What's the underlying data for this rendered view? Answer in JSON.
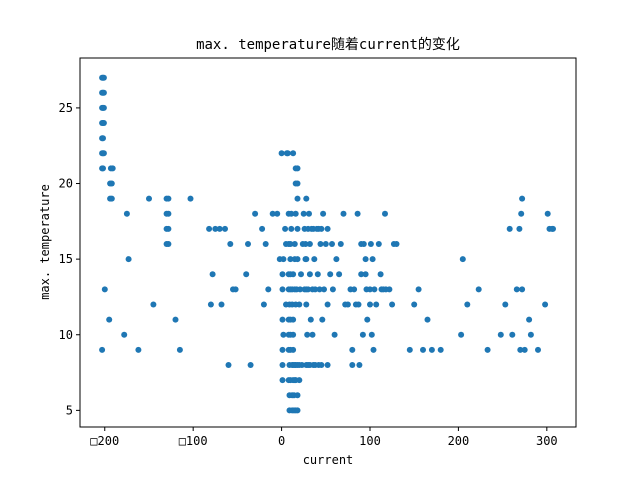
{
  "chart_data": {
    "type": "scatter",
    "title": "max. temperature随着current的变化",
    "xlabel": "current",
    "ylabel": "max. temperature",
    "xlim": [
      -228,
      333
    ],
    "ylim": [
      3.9,
      28.3
    ],
    "x_ticks": [
      -200,
      -100,
      0,
      100,
      200,
      300
    ],
    "x_tick_labels": [
      "□200",
      "□100",
      "0",
      "100",
      "200",
      "300"
    ],
    "y_ticks": [
      5,
      10,
      15,
      20,
      25
    ],
    "y_tick_labels": [
      "5",
      "10",
      "15",
      "20",
      "25"
    ],
    "grid": false,
    "legend": "none",
    "marker_color": "#1f77b4",
    "series": [
      {
        "points": [
          [
            -203,
            27
          ],
          [
            -202,
            27
          ],
          [
            -201,
            27
          ],
          [
            -203,
            26
          ],
          [
            -202,
            26
          ],
          [
            -201,
            26
          ],
          [
            -203,
            25
          ],
          [
            -202,
            25
          ],
          [
            -201,
            25
          ],
          [
            -203,
            24
          ],
          [
            -202,
            24
          ],
          [
            -201,
            24
          ],
          [
            -203,
            23
          ],
          [
            -202,
            23
          ],
          [
            -203,
            22
          ],
          [
            -202,
            22
          ],
          [
            -201,
            22
          ],
          [
            -203,
            21
          ],
          [
            -202,
            21
          ],
          [
            -193,
            21
          ],
          [
            -191,
            21
          ],
          [
            -194,
            20
          ],
          [
            -192,
            20
          ],
          [
            -194,
            19
          ],
          [
            -192,
            19
          ],
          [
            -203,
            9
          ],
          [
            -200,
            13
          ],
          [
            -195,
            11
          ],
          [
            -178,
            10
          ],
          [
            -175,
            18
          ],
          [
            -173,
            15
          ],
          [
            -162,
            9
          ],
          [
            -150,
            19
          ],
          [
            -145,
            12
          ],
          [
            -130,
            19
          ],
          [
            -128,
            19
          ],
          [
            -130,
            18
          ],
          [
            -128,
            18
          ],
          [
            -130,
            17
          ],
          [
            -128,
            17
          ],
          [
            -130,
            16
          ],
          [
            -128,
            16
          ],
          [
            -120,
            11
          ],
          [
            -115,
            9
          ],
          [
            -103,
            19
          ],
          [
            -82,
            17
          ],
          [
            -80,
            12
          ],
          [
            -78,
            14
          ],
          [
            -75,
            17
          ],
          [
            -70,
            17
          ],
          [
            -68,
            12
          ],
          [
            -64,
            17
          ],
          [
            -60,
            8
          ],
          [
            -58,
            16
          ],
          [
            -55,
            13
          ],
          [
            -52,
            13
          ],
          [
            -40,
            14
          ],
          [
            -38,
            16
          ],
          [
            -35,
            8
          ],
          [
            -30,
            18
          ],
          [
            -22,
            17
          ],
          [
            -20,
            12
          ],
          [
            -18,
            16
          ],
          [
            -15,
            13
          ],
          [
            -10,
            18
          ],
          [
            -5,
            18
          ],
          [
            -2,
            15
          ],
          [
            0,
            22
          ],
          [
            1,
            9
          ],
          [
            1,
            7
          ],
          [
            1,
            11
          ],
          [
            1,
            8
          ],
          [
            1,
            13
          ],
          [
            1,
            14
          ],
          [
            2,
            10
          ],
          [
            2,
            15
          ],
          [
            4,
            17
          ],
          [
            5,
            12
          ],
          [
            5,
            16
          ],
          [
            6,
            22
          ],
          [
            7,
            22
          ],
          [
            8,
            7
          ],
          [
            8,
            9
          ],
          [
            8,
            10
          ],
          [
            8,
            11
          ],
          [
            8,
            13
          ],
          [
            8,
            14
          ],
          [
            8,
            16
          ],
          [
            8,
            18
          ],
          [
            9,
            5
          ],
          [
            9,
            6
          ],
          [
            9,
            8
          ],
          [
            9,
            12
          ],
          [
            10,
            7
          ],
          [
            10,
            9
          ],
          [
            10,
            10
          ],
          [
            10,
            11
          ],
          [
            10,
            13
          ],
          [
            10,
            14
          ],
          [
            10,
            15
          ],
          [
            10,
            16
          ],
          [
            11,
            17
          ],
          [
            11,
            18
          ],
          [
            12,
            5
          ],
          [
            12,
            6
          ],
          [
            12,
            8
          ],
          [
            12,
            12
          ],
          [
            12,
            13
          ],
          [
            13,
            7
          ],
          [
            13,
            8
          ],
          [
            13,
            9
          ],
          [
            13,
            10
          ],
          [
            13,
            11
          ],
          [
            13,
            14
          ],
          [
            13,
            22
          ],
          [
            14,
            5
          ],
          [
            14,
            6
          ],
          [
            15,
            7
          ],
          [
            15,
            8
          ],
          [
            15,
            13
          ],
          [
            15,
            15
          ],
          [
            15,
            16
          ],
          [
            16,
            5
          ],
          [
            16,
            7
          ],
          [
            16,
            8
          ],
          [
            16,
            12
          ],
          [
            16,
            18
          ],
          [
            16,
            20
          ],
          [
            16,
            21
          ],
          [
            17,
            13
          ],
          [
            18,
            5
          ],
          [
            18,
            6
          ],
          [
            18,
            8
          ],
          [
            18,
            15
          ],
          [
            18,
            17
          ],
          [
            18,
            19
          ],
          [
            18,
            20
          ],
          [
            18,
            21
          ],
          [
            20,
            7
          ],
          [
            20,
            8
          ],
          [
            20,
            12
          ],
          [
            21,
            13
          ],
          [
            22,
            14
          ],
          [
            23,
            8
          ],
          [
            24,
            16
          ],
          [
            25,
            18
          ],
          [
            26,
            13
          ],
          [
            26,
            17
          ],
          [
            27,
            15
          ],
          [
            27,
            16
          ],
          [
            28,
            8
          ],
          [
            28,
            12
          ],
          [
            28,
            13
          ],
          [
            28,
            15
          ],
          [
            28,
            19
          ],
          [
            29,
            10
          ],
          [
            30,
            8
          ],
          [
            30,
            13
          ],
          [
            30,
            17
          ],
          [
            31,
            18
          ],
          [
            32,
            8
          ],
          [
            32,
            14
          ],
          [
            32,
            16
          ],
          [
            33,
            11
          ],
          [
            34,
            17
          ],
          [
            35,
            10
          ],
          [
            35,
            13
          ],
          [
            36,
            8
          ],
          [
            36,
            17
          ],
          [
            37,
            15
          ],
          [
            38,
            8
          ],
          [
            38,
            13
          ],
          [
            40,
            17
          ],
          [
            41,
            14
          ],
          [
            42,
            8
          ],
          [
            42,
            17
          ],
          [
            43,
            13
          ],
          [
            44,
            16
          ],
          [
            45,
            8
          ],
          [
            45,
            17
          ],
          [
            46,
            11
          ],
          [
            47,
            18
          ],
          [
            48,
            13
          ],
          [
            50,
            16
          ],
          [
            52,
            8
          ],
          [
            52,
            12
          ],
          [
            52,
            17
          ],
          [
            55,
            14
          ],
          [
            57,
            16
          ],
          [
            58,
            13
          ],
          [
            60,
            10
          ],
          [
            62,
            15
          ],
          [
            65,
            14
          ],
          [
            67,
            16
          ],
          [
            70,
            18
          ],
          [
            72,
            12
          ],
          [
            75,
            12
          ],
          [
            78,
            13
          ],
          [
            80,
            8
          ],
          [
            80,
            9
          ],
          [
            82,
            13
          ],
          [
            84,
            12
          ],
          [
            86,
            18
          ],
          [
            87,
            12
          ],
          [
            88,
            8
          ],
          [
            90,
            14
          ],
          [
            90,
            16
          ],
          [
            92,
            10
          ],
          [
            93,
            16
          ],
          [
            95,
            14
          ],
          [
            95,
            15
          ],
          [
            96,
            13
          ],
          [
            97,
            11
          ],
          [
            100,
            12
          ],
          [
            100,
            13
          ],
          [
            101,
            16
          ],
          [
            102,
            10
          ],
          [
            103,
            15
          ],
          [
            104,
            9
          ],
          [
            105,
            13
          ],
          [
            107,
            12
          ],
          [
            110,
            16
          ],
          [
            112,
            14
          ],
          [
            113,
            13
          ],
          [
            115,
            13
          ],
          [
            117,
            18
          ],
          [
            118,
            13
          ],
          [
            122,
            13
          ],
          [
            125,
            12
          ],
          [
            127,
            16
          ],
          [
            130,
            16
          ],
          [
            145,
            9
          ],
          [
            150,
            12
          ],
          [
            155,
            13
          ],
          [
            160,
            9
          ],
          [
            165,
            11
          ],
          [
            170,
            9
          ],
          [
            180,
            9
          ],
          [
            203,
            10
          ],
          [
            205,
            15
          ],
          [
            210,
            12
          ],
          [
            223,
            13
          ],
          [
            233,
            9
          ],
          [
            248,
            10
          ],
          [
            253,
            12
          ],
          [
            258,
            17
          ],
          [
            261,
            10
          ],
          [
            266,
            13
          ],
          [
            269,
            17
          ],
          [
            270,
            9
          ],
          [
            271,
            18
          ],
          [
            272,
            19
          ],
          [
            272,
            13
          ],
          [
            275,
            9
          ],
          [
            280,
            11
          ],
          [
            282,
            10
          ],
          [
            290,
            9
          ],
          [
            298,
            12
          ],
          [
            301,
            18
          ],
          [
            303,
            17
          ],
          [
            306,
            17
          ],
          [
            307,
            17
          ]
        ]
      }
    ]
  }
}
